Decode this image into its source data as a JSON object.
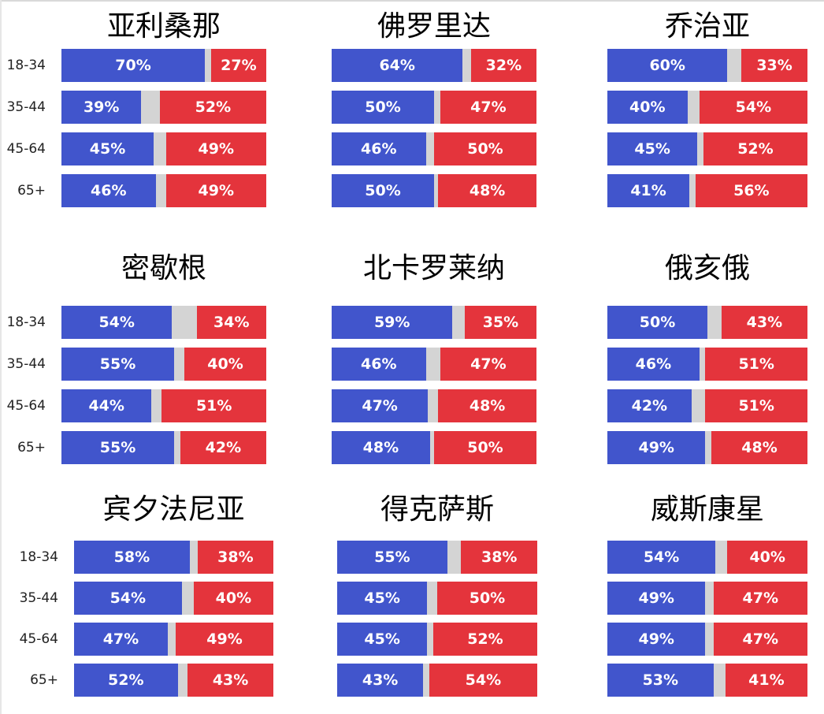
{
  "colors": {
    "harris": "#4155cc",
    "other": "#d4d4d4",
    "trump": "#e4343c"
  },
  "chart_data": [
    {
      "type": "bar",
      "title": "亚利桑那",
      "categories": [
        "18-34",
        "35-44",
        "45-64",
        "65+"
      ],
      "series": [
        {
          "values": [
            70,
            39,
            45,
            46
          ]
        },
        {
          "values": [
            27,
            52,
            49,
            49
          ]
        }
      ]
    },
    {
      "type": "bar",
      "title": "佛罗里达",
      "categories": [
        "18-34",
        "35-44",
        "45-64",
        "65+"
      ],
      "series": [
        {
          "values": [
            64,
            50,
            46,
            50
          ]
        },
        {
          "values": [
            32,
            47,
            50,
            48
          ]
        }
      ]
    },
    {
      "type": "bar",
      "title": "乔治亚",
      "categories": [
        "18-34",
        "35-44",
        "45-64",
        "65+"
      ],
      "series": [
        {
          "values": [
            60,
            40,
            45,
            41
          ]
        },
        {
          "values": [
            33,
            54,
            52,
            56
          ]
        }
      ]
    },
    {
      "type": "bar",
      "title": "密歇根",
      "categories": [
        "18-34",
        "35-44",
        "45-64",
        "65+"
      ],
      "series": [
        {
          "values": [
            54,
            55,
            44,
            55
          ]
        },
        {
          "values": [
            34,
            40,
            51,
            42
          ]
        }
      ]
    },
    {
      "type": "bar",
      "title": "北卡罗莱纳",
      "categories": [
        "18-34",
        "35-44",
        "45-64",
        "65+"
      ],
      "series": [
        {
          "values": [
            59,
            46,
            47,
            48
          ]
        },
        {
          "values": [
            35,
            47,
            48,
            50
          ]
        }
      ]
    },
    {
      "type": "bar",
      "title": "俄亥俄",
      "categories": [
        "18-34",
        "35-44",
        "45-64",
        "65+"
      ],
      "series": [
        {
          "values": [
            50,
            46,
            42,
            49
          ]
        },
        {
          "values": [
            43,
            51,
            51,
            48
          ]
        }
      ]
    },
    {
      "type": "bar",
      "title": "宾夕法尼亚",
      "categories": [
        "18-34",
        "35-44",
        "45-64",
        "65+"
      ],
      "series": [
        {
          "values": [
            58,
            54,
            47,
            52
          ]
        },
        {
          "values": [
            38,
            40,
            49,
            43
          ]
        }
      ]
    },
    {
      "type": "bar",
      "title": "得克萨斯",
      "categories": [
        "18-34",
        "35-44",
        "45-64",
        "65+"
      ],
      "series": [
        {
          "values": [
            55,
            45,
            45,
            43
          ]
        },
        {
          "values": [
            38,
            50,
            52,
            54
          ]
        }
      ]
    },
    {
      "type": "bar",
      "title": "威斯康星",
      "categories": [
        "18-34",
        "35-44",
        "45-64",
        "65+"
      ],
      "series": [
        {
          "values": [
            54,
            49,
            49,
            53
          ]
        },
        {
          "values": [
            40,
            47,
            47,
            41
          ]
        }
      ]
    }
  ]
}
